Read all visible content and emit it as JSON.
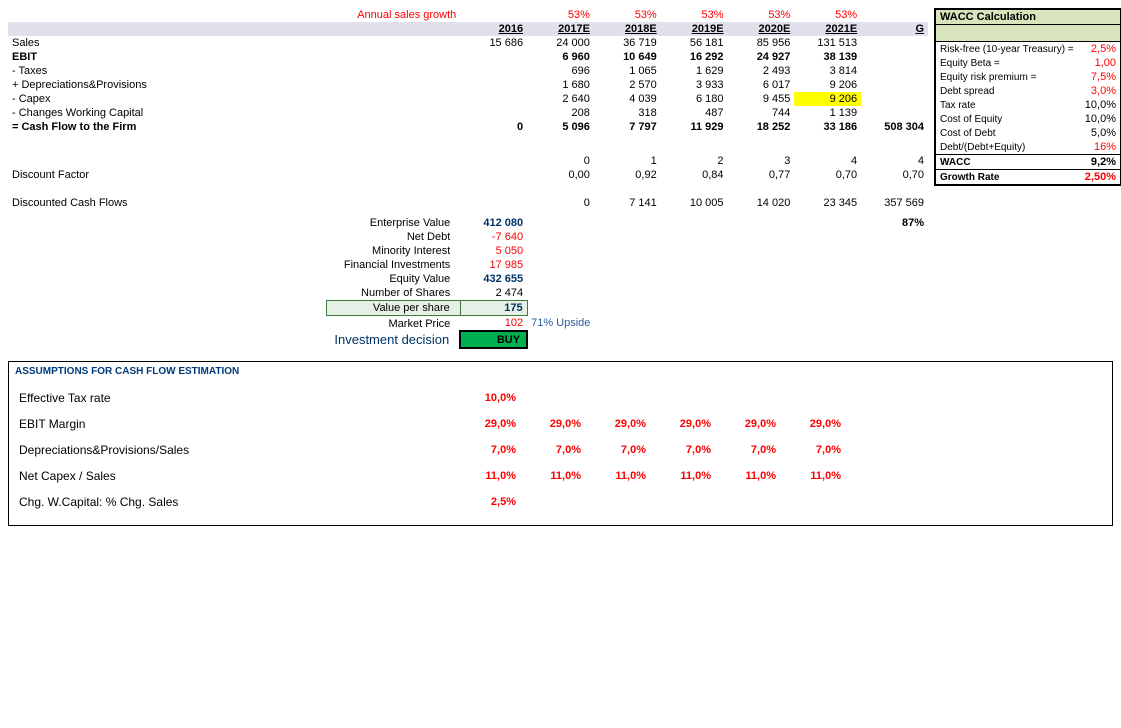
{
  "colors": {
    "red": "#ff0000",
    "blue_dark": "#003366",
    "header_bg": "#e1e1eb",
    "highlight": "#ffff00",
    "wacc_bg": "#d8e4bc",
    "buy_bg": "#00b050",
    "vps_bg": "#e6f0e6",
    "assump_title": "#003a7a"
  },
  "growth": {
    "label": "Annual sales growth",
    "values": [
      "53%",
      "53%",
      "53%",
      "53%",
      "53%"
    ]
  },
  "years": [
    "2016",
    "2017E",
    "2018E",
    "2019E",
    "2020E",
    "2021E",
    "G"
  ],
  "rows": {
    "sales": {
      "label": "Sales",
      "cells": [
        "15 686",
        "24 000",
        "36 719",
        "56 181",
        "85 956",
        "131 513",
        ""
      ]
    },
    "ebit": {
      "label": "EBIT",
      "bold": true,
      "cells": [
        "",
        "6 960",
        "10 649",
        "16 292",
        "24 927",
        "38 139",
        ""
      ]
    },
    "taxes": {
      "label": " - Taxes",
      "cells": [
        "",
        "696",
        "1 065",
        "1 629",
        "2 493",
        "3 814",
        ""
      ]
    },
    "depr": {
      "label": " + Depreciations&Provisions",
      "cells": [
        "",
        "1 680",
        "2 570",
        "3 933",
        "6 017",
        "9 206",
        ""
      ]
    },
    "capex": {
      "label": " - Capex",
      "cells": [
        "",
        "2 640",
        "4 039",
        "6 180",
        "9 455",
        "9 206",
        ""
      ],
      "highlight_col": 5
    },
    "dwc": {
      "label": " - Changes Working Capital",
      "cells": [
        "",
        "208",
        "318",
        "487",
        "744",
        "1 139",
        ""
      ]
    },
    "cff": {
      "label": "= Cash Flow to the Firm",
      "bold": true,
      "cells": [
        "0",
        "5 096",
        "7 797",
        "11 929",
        "18 252",
        "33 186",
        "508 304"
      ]
    },
    "period": {
      "label": "",
      "cells": [
        "0",
        "1",
        "2",
        "3",
        "4",
        "4"
      ]
    },
    "disc_factor": {
      "label": "Discount Factor",
      "cells": [
        "0,00",
        "0,92",
        "0,84",
        "0,77",
        "0,70",
        "0,70"
      ]
    },
    "dcf": {
      "label": "Discounted Cash Flows",
      "cells": [
        "",
        "0",
        "7 141",
        "10 005",
        "14 020",
        "23 345",
        "357 569"
      ]
    }
  },
  "valuation": {
    "ev": {
      "label": "Enterprise Value",
      "value": "412 080",
      "color": "blue",
      "extra": "87%"
    },
    "net_debt": {
      "label": "Net Debt",
      "value": "-7 640",
      "color": "red"
    },
    "minority": {
      "label": "Minority Interest",
      "value": "5 050",
      "color": "red"
    },
    "fin_inv": {
      "label": "Financial Investments",
      "value": "17 985",
      "color": "red"
    },
    "equity": {
      "label": "Equity Value",
      "value": "432 655",
      "color": "blue"
    },
    "shares": {
      "label": "Number of Shares",
      "value": "2 474"
    },
    "vps": {
      "label": "Value per share",
      "value": "175",
      "color": "blue"
    },
    "market": {
      "label": "Market Price",
      "value": "102",
      "color": "red",
      "upside": "71% Upside"
    },
    "decision": {
      "label": "Investment decision",
      "value": "BUY"
    }
  },
  "wacc": {
    "title": "WACC Calculation",
    "rows": [
      {
        "label": "Risk-free (10-year Treasury) =",
        "value": "2,5%",
        "red": true
      },
      {
        "label": "Equity Beta =",
        "value": "1,00",
        "red": true
      },
      {
        "label": "Equity risk premium =",
        "value": "7,5%",
        "red": true
      },
      {
        "label": "Debt spread",
        "value": "3,0%",
        "red": true
      },
      {
        "label": "Tax rate",
        "value": "10,0%"
      },
      {
        "label": "Cost of Equity",
        "value": "10,0%"
      },
      {
        "label": "Cost of Debt",
        "value": "5,0%"
      },
      {
        "label": "Debt/(Debt+Equity)",
        "value": "16%",
        "red": true
      },
      {
        "label": "WACC",
        "value": "9,2%",
        "bold": true,
        "border_top": true
      },
      {
        "label": "Growth Rate",
        "value": "2,50%",
        "red": true,
        "bold": true,
        "border_top": true
      }
    ]
  },
  "assumptions": {
    "title": "ASSUMPTIONS FOR CASH FLOW ESTIMATION",
    "rows": [
      {
        "label": "Effective Tax rate",
        "cells": [
          "10,0%",
          "",
          "",
          "",
          "",
          ""
        ]
      },
      {
        "label": "EBIT Margin",
        "cells": [
          "29,0%",
          "29,0%",
          "29,0%",
          "29,0%",
          "29,0%",
          "29,0%"
        ]
      },
      {
        "label": "Depreciations&Provisions/Sales",
        "cells": [
          "7,0%",
          "7,0%",
          "7,0%",
          "7,0%",
          "7,0%",
          "7,0%"
        ]
      },
      {
        "label": "Net Capex / Sales",
        "cells": [
          "11,0%",
          "11,0%",
          "11,0%",
          "11,0%",
          "11,0%",
          "11,0%"
        ]
      },
      {
        "label": "Chg. W.Capital: % Chg. Sales",
        "cells": [
          "2,5%",
          "",
          "",
          "",
          "",
          ""
        ]
      }
    ]
  }
}
